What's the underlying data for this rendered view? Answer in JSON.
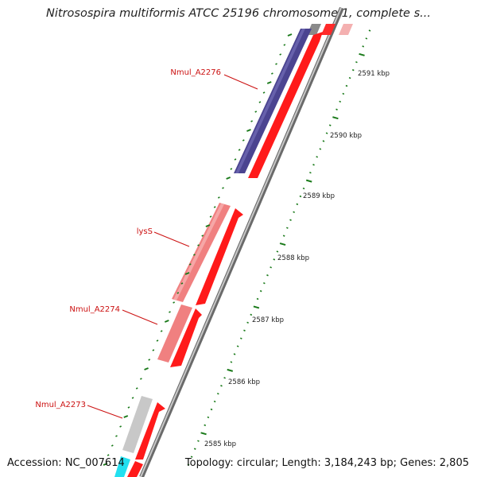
{
  "title": "Nitrosospira multiformis ATCC 25196 chromosome 1, complete s...",
  "footer": {
    "accession": "Accession: NC_007614",
    "summary": "Topology: circular; Length: 3,184,243 bp; Genes: 2,805"
  },
  "colors": {
    "backbone": "#9a9a9a",
    "tick": "#1a7a1a",
    "strand_arrow": "#ff1a1a",
    "label": "#cc1111"
  },
  "genes": [
    {
      "name": "Nmul_A2276",
      "color": "#4b4490"
    },
    {
      "name": "lysS",
      "color": "#f08080"
    },
    {
      "name": "Nmul_A2274",
      "color": "#f08080"
    },
    {
      "name": "Nmul_A2273",
      "color": "#c8c8c8"
    }
  ],
  "kbp_ticks": [
    "2591 kbp",
    "2590 kbp",
    "2589 kbp",
    "2588 kbp",
    "2587 kbp",
    "2586 kbp",
    "2585 kbp"
  ]
}
